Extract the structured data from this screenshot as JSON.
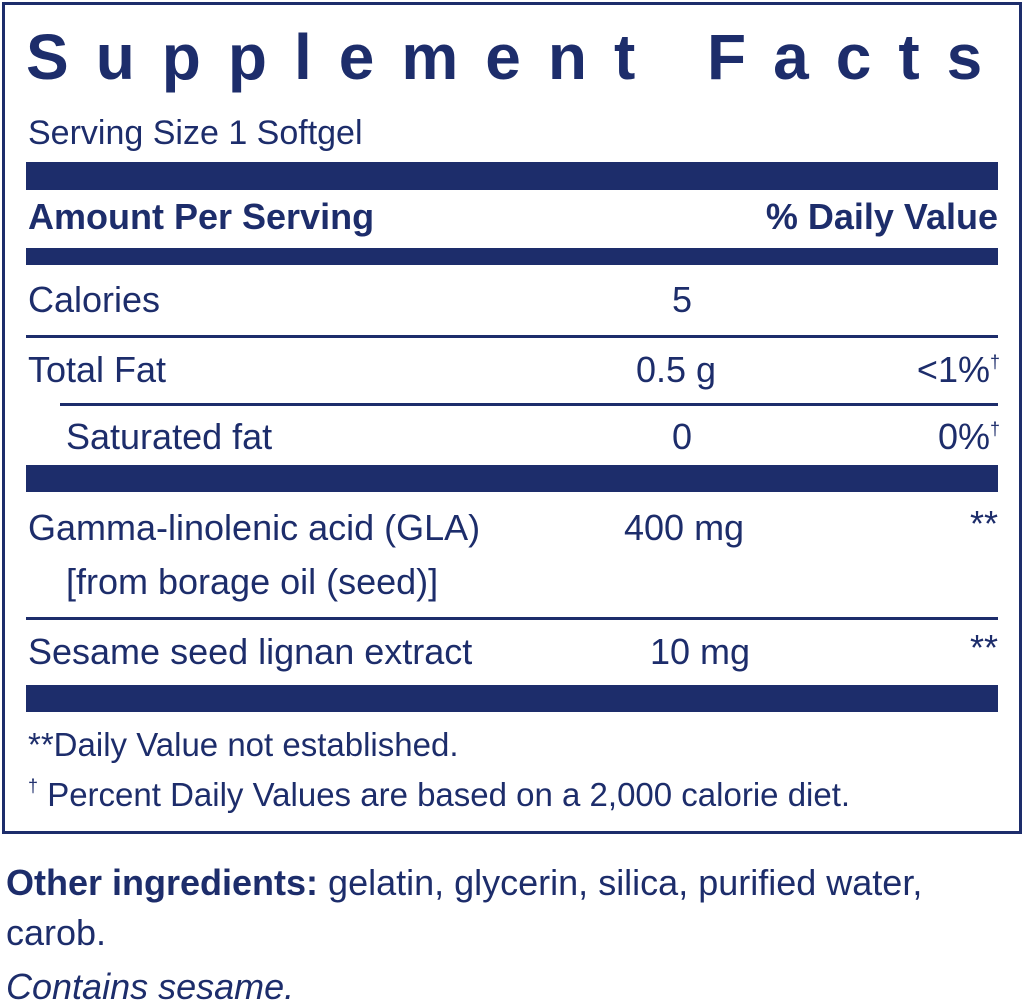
{
  "label": {
    "title": "Supplement Facts",
    "serving_size": "Serving Size 1 Softgel",
    "header": {
      "amount": "Amount Per Serving",
      "daily_value": "% Daily Value"
    },
    "rows": [
      {
        "name": "Calories",
        "amount": "5"
      },
      {
        "name": "Total Fat",
        "amount": "0.5 g",
        "dv": "<1%",
        "dv_mark": "†"
      },
      {
        "name": "Saturated fat",
        "amount": "0",
        "dv": "0%",
        "dv_mark": "†"
      },
      {
        "name": "Gamma-linolenic acid (GLA)",
        "name_line2": "[from borage oil (seed)]",
        "amount": "400 mg",
        "dv": "**"
      },
      {
        "name": "Sesame seed lignan extract",
        "amount": "10 mg",
        "dv": "**"
      }
    ],
    "footnotes": [
      {
        "text": "**Daily Value not established."
      },
      {
        "mark": "†",
        "text": "Percent Daily Values are based on a 2,000 calorie diet."
      }
    ]
  },
  "other_ingredients": {
    "label": "Other ingredients:",
    "text": "gelatin, glycerin, silica, purified water, carob."
  },
  "contains": "Contains sesame."
}
